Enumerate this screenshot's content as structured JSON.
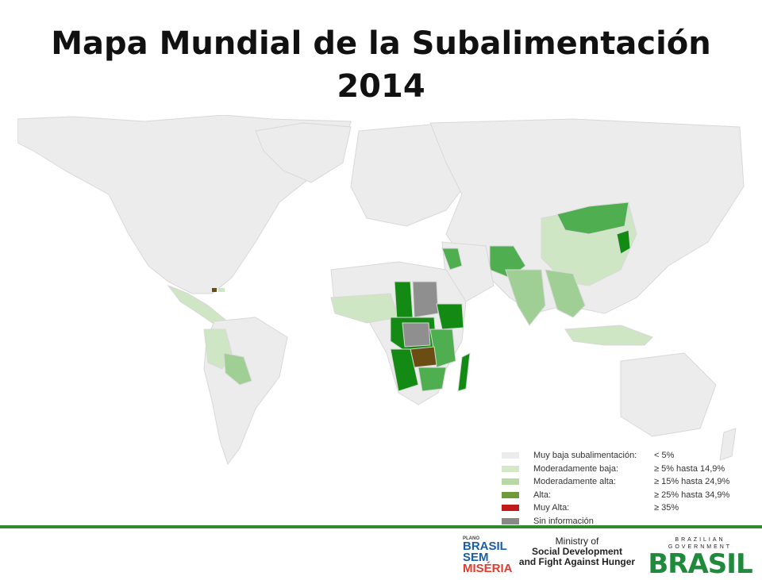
{
  "title": {
    "line1": "Mapa Mundial de la Subalimentación",
    "line2": "2014"
  },
  "legend": [
    {
      "label": "Muy baja subalimentación:",
      "range": "< 5%",
      "color": "#ececec"
    },
    {
      "label": "Moderadamente baja:",
      "range": "≥ 5% hasta 14,9%",
      "color": "#d4e8c8"
    },
    {
      "label": "Moderadamente alta:",
      "range": "≥ 15% hasta 24,9%",
      "color": "#b8d8a4"
    },
    {
      "label": "Alta:",
      "range": "≥ 25% hasta 34,9%",
      "color": "#6e9a3a"
    },
    {
      "label": "Muy Alta:",
      "range": "≥ 35%",
      "color": "#c01a1a"
    },
    {
      "label": "Sin información",
      "range": "",
      "color": "#888888"
    }
  ],
  "map_colors": {
    "ocean": "#ffffff",
    "land": "#ececec",
    "light_green": "#cfe6c4",
    "mid_green": "#9fcf95",
    "green": "#4fae4f",
    "dark_green": "#138a13",
    "brown": "#6b4c12",
    "gray": "#8f8f8f"
  },
  "footer": {
    "bsm_tag": "PLANO",
    "bsm_line1": "BRASIL",
    "bsm_line2": "SEM",
    "bsm_line3": "MISÉRIA",
    "ministry_line1": "Ministry of",
    "ministry_line2": "Social Development",
    "ministry_line3": "and Fight Against Hunger",
    "gov_top": "BRAZILIAN GOVERNMENT",
    "gov_word": "BRASIL"
  }
}
